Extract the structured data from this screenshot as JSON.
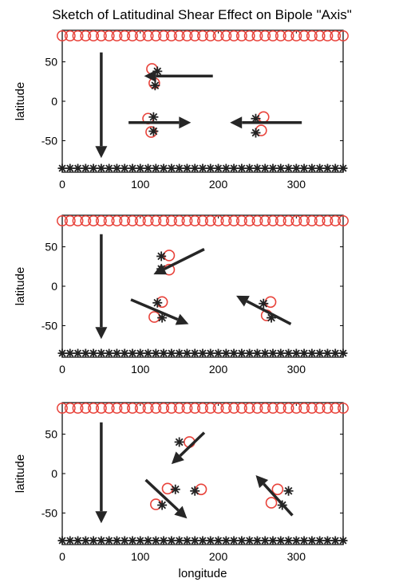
{
  "title": "Sketch of Latitudinal Shear Effect on Bipole \"Axis\"",
  "colors": {
    "positive": "#e8423a",
    "negative": "#222222",
    "arrow": "#262626",
    "frame": "#000000"
  },
  "chart_data": [
    {
      "type": "scatter",
      "ylabel": "latitude",
      "xlabel": "",
      "xlim": [
        0,
        360
      ],
      "ylim": [
        -90,
        90
      ],
      "xticks": [
        "0",
        "100",
        "200",
        "300"
      ],
      "yticks": [
        "50",
        "0",
        "-50"
      ],
      "boundary_lats": {
        "top": 83,
        "bottom": -85
      },
      "positive_polarity": [
        [
          115,
          41
        ],
        [
          118,
          23
        ],
        [
          110,
          -22
        ],
        [
          114,
          -39
        ],
        [
          258,
          -20
        ],
        [
          255,
          -37
        ]
      ],
      "negative_polarity": [
        [
          122,
          38
        ],
        [
          119,
          20
        ],
        [
          117,
          -20
        ],
        [
          117,
          -38
        ],
        [
          248,
          -22
        ],
        [
          248,
          -40
        ]
      ],
      "arrows": [
        [
          193,
          32,
          105,
          32
        ],
        [
          85,
          -27,
          165,
          -27
        ],
        [
          307,
          -27,
          215,
          -27
        ],
        [
          50,
          62,
          50,
          -72
        ]
      ]
    },
    {
      "type": "scatter",
      "ylabel": "latitude",
      "xlabel": "",
      "xlim": [
        0,
        360
      ],
      "ylim": [
        -90,
        90
      ],
      "xticks": [
        "0",
        "100",
        "200",
        "300"
      ],
      "yticks": [
        "50",
        "0",
        "-50"
      ],
      "boundary_lats": {
        "top": 83,
        "bottom": -85
      },
      "positive_polarity": [
        [
          137,
          39
        ],
        [
          137,
          21
        ],
        [
          118,
          -39
        ],
        [
          128,
          -20
        ],
        [
          267,
          -20
        ],
        [
          262,
          -37
        ]
      ],
      "negative_polarity": [
        [
          127,
          38
        ],
        [
          127,
          22
        ],
        [
          128,
          -40
        ],
        [
          122,
          -21
        ],
        [
          258,
          -22
        ],
        [
          268,
          -40
        ]
      ],
      "arrows": [
        [
          182,
          47,
          117,
          15
        ],
        [
          88,
          -17,
          162,
          -48
        ],
        [
          293,
          -48,
          223,
          -12
        ],
        [
          50,
          66,
          50,
          -67
        ]
      ]
    },
    {
      "type": "scatter",
      "ylabel": "latitude",
      "xlabel": "longitude",
      "xlim": [
        0,
        360
      ],
      "ylim": [
        -90,
        90
      ],
      "xticks": [
        "0",
        "100",
        "200",
        "300"
      ],
      "yticks": [
        "50",
        "0",
        "-50"
      ],
      "boundary_lats": {
        "top": 83,
        "bottom": -85
      },
      "positive_polarity": [
        [
          163,
          40
        ],
        [
          178,
          -20
        ],
        [
          135,
          -19
        ],
        [
          120,
          -39
        ],
        [
          276,
          -20
        ],
        [
          268,
          -37
        ]
      ],
      "negative_polarity": [
        [
          150,
          40
        ],
        [
          170,
          -22
        ],
        [
          145,
          -20
        ],
        [
          128,
          -40
        ],
        [
          290,
          -22
        ],
        [
          282,
          -40
        ]
      ],
      "arrows": [
        [
          182,
          52,
          140,
          12
        ],
        [
          107,
          -8,
          160,
          -57
        ],
        [
          295,
          -53,
          248,
          -2
        ],
        [
          50,
          65,
          50,
          -63
        ]
      ]
    }
  ]
}
